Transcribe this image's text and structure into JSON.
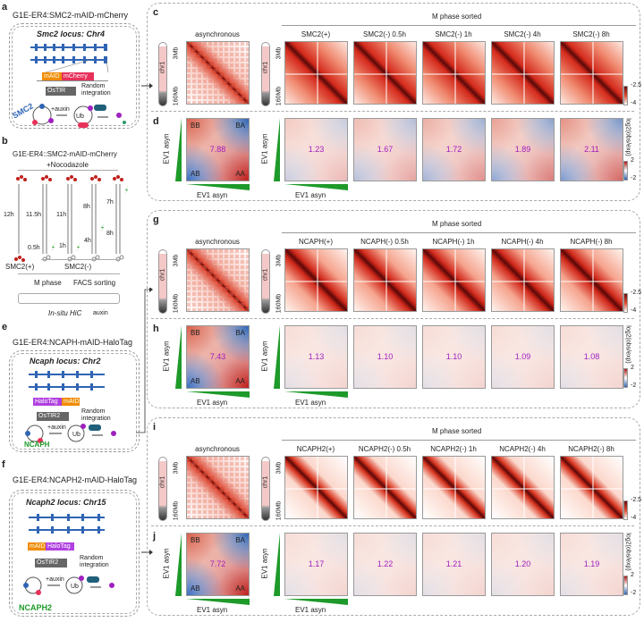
{
  "panel_a": {
    "letter": "a",
    "title": "G1E-ER4:SMC2-mAID-mCherry",
    "locus": "Smc2 locus: Chr4",
    "tag1": "mAID",
    "tag2": "mCherry",
    "tir": "OsTIR",
    "random": "Random integration",
    "protein": "SMC2",
    "auxin": "+auxin",
    "ub": "Ub"
  },
  "panel_b": {
    "letter": "b",
    "title": "G1E-ER4::SMC2-mAID-mCherry",
    "noco": "+Nocodazole",
    "times_top": [
      "12h",
      "11.5h",
      "11h",
      "8h",
      "7h"
    ],
    "times_mid": [
      "4h",
      "8h"
    ],
    "times_bottom": [
      "0.5h",
      "1h"
    ],
    "plus": "SMC2(+)",
    "minus": "SMC2(-)",
    "mphase": "M phase",
    "facs": "FACS sorting",
    "hic": "In-situ HiC",
    "auxin": "auxin"
  },
  "panel_e": {
    "letter": "e",
    "title": "G1E-ER4:NCAPH-mAID-HaloTag",
    "locus": "Ncaph locus: Chr2",
    "tag1": "HaloTag",
    "tag2": "mAID",
    "tir": "OsTIR2",
    "random": "Random integration",
    "protein": "NCAPH",
    "auxin": "+auxin",
    "ub": "Ub"
  },
  "panel_f": {
    "letter": "f",
    "title": "G1E-ER4:NCAPH2-mAID-HaloTag",
    "locus": "Ncaph2 locus: Chr15",
    "tag1": "mAID",
    "tag2": "HaloTag",
    "tir": "OsTIR2",
    "random": "Random integration",
    "protein": "NCAPH2",
    "auxin": "+auxin",
    "ub": "Ub"
  },
  "common": {
    "mphase_sorted": "M phase sorted",
    "chr": "chr1",
    "top": "3Mb",
    "bottom": "160Mb",
    "ev1": "EV1 asyn",
    "bb": "BB",
    "ba": "BA",
    "ab": "AB",
    "aa": "AA",
    "cb1_hi": "-2.5",
    "cb1_lo": "-4",
    "cb2_label": "log2(obs/exp)",
    "cb2_hi": "2",
    "cb2_lo": "-2"
  },
  "groups": [
    {
      "letters": [
        "c",
        "d"
      ],
      "columns": [
        "asynchronous",
        "SMC2(+)",
        "SMC2(-) 0.5h",
        "SMC2(-) 1h",
        "SMC2(-) 4h",
        "SMC2(-) 8h"
      ],
      "saddle_strength": [
        "7.88",
        "1.23",
        "1.67",
        "1.72",
        "1.89",
        "2.11"
      ]
    },
    {
      "letters": [
        "g",
        "h"
      ],
      "columns": [
        "asynchronous",
        "NCAPH(+)",
        "NCAPH(-) 0.5h",
        "NCAPH(-) 1h",
        "NCAPH(-) 4h",
        "NCAPH(-) 8h"
      ],
      "saddle_strength": [
        "7.43",
        "1.13",
        "1.10",
        "1.10",
        "1.09",
        "1.08"
      ]
    },
    {
      "letters": [
        "i",
        "j"
      ],
      "columns": [
        "asynchronous",
        "NCAPH2(+)",
        "NCAPH2(-) 0.5h",
        "NCAPH2(-) 1h",
        "NCAPH2(-) 4h",
        "NCAPH2(-) 8h"
      ],
      "saddle_strength": [
        "7.72",
        "1.17",
        "1.22",
        "1.21",
        "1.20",
        "1.19"
      ]
    }
  ],
  "colors": {
    "red": "#c0201c",
    "blue": "#2f64b4",
    "green": "#1e9a2a",
    "orange": "#f08c00",
    "pink": "#e8315a",
    "purple": "#b040e0",
    "value": "#a020c0"
  }
}
